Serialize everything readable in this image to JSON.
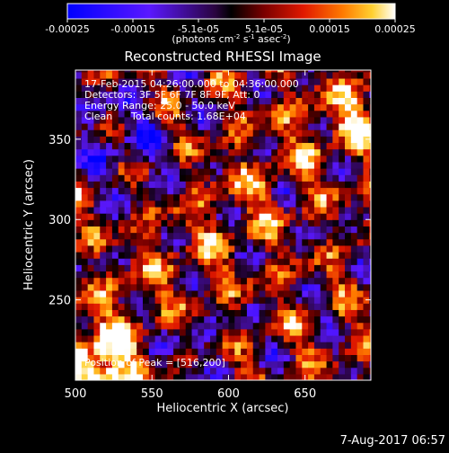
{
  "chart_data": [
    {
      "type": "heatmap",
      "title": "Reconstructed RHESSI Image",
      "xlabel": "Heliocentric X (arcsec)",
      "ylabel": "Heliocentric Y (arcsec)",
      "xlim": [
        500,
        693
      ],
      "ylim": [
        200,
        393
      ],
      "x_ticks": [
        500,
        550,
        600,
        650
      ],
      "y_ticks": [
        250,
        300,
        350
      ],
      "grid": false,
      "info": {
        "time_range": "17-Feb-2015 04:26:00.000 to 04:36:00.000",
        "detectors": "Detectors: 3F 5F 6F 7F 8F 9F, Att: 0",
        "energy": "Energy Range: 25.0 - 50.0 keV",
        "method": "Clean",
        "total_counts": "Total counts: 1.68E+04",
        "peak": "Position of Peak = [516,200]"
      },
      "peak_position": [
        516,
        200
      ],
      "pixel_size_arcsec": 4,
      "value_range": [
        -0.00025,
        0.00025
      ]
    },
    {
      "type": "heatmap",
      "colorbar_ticks": [
        "-0.00025",
        "-0.00015",
        "-5.1e-05",
        "5.1e-05",
        "0.00015",
        "0.00025"
      ],
      "unit_parts": [
        "(photons cm",
        "-2",
        " s",
        "-1",
        " asec",
        "-2",
        ")"
      ],
      "range": [
        -0.00025,
        0.00025
      ]
    }
  ],
  "footer": {
    "date": "7-Aug-2017 06:57"
  },
  "colors": {
    "background": "#000000",
    "text": "#ffffff"
  }
}
